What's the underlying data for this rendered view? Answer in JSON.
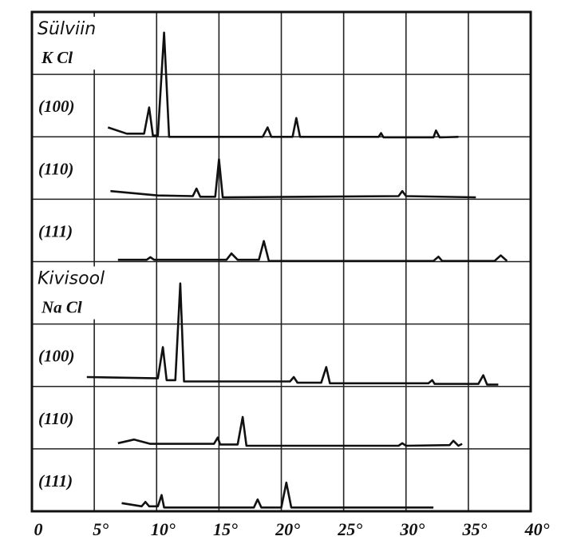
{
  "chart_data": {
    "type": "line",
    "xlim": [
      0,
      40
    ],
    "xticks": [
      0,
      {
        "value": 5,
        "label": "5°"
      },
      {
        "value": 10,
        "label": "10°"
      },
      {
        "value": 15,
        "label": "15°"
      },
      {
        "value": 20,
        "label": "20°"
      },
      {
        "value": 25,
        "label": "25°"
      },
      {
        "value": 30,
        "label": "30°"
      },
      {
        "value": 35,
        "label": "35°"
      },
      {
        "value": 40,
        "label": "40°"
      }
    ],
    "ylim": [
      0,
      8
    ],
    "yticks": [
      0,
      1,
      2,
      3,
      4,
      5,
      6,
      7,
      8
    ],
    "grid": true,
    "color": "#111111",
    "groups": [
      {
        "name": "Sülviin",
        "formula": "K Cl",
        "series": [
          {
            "name": "(100)",
            "x": [
              6.1,
              7.6,
              9.0,
              9.4,
              9.7,
              10.1,
              10.6,
              11.0,
              18.5,
              18.9,
              19.2,
              20.9,
              21.2,
              21.5,
              27.8,
              28.0,
              28.2,
              32.2,
              32.4,
              32.7,
              34.2
            ],
            "values": [
              6.15,
              6.05,
              6.05,
              6.47,
              6.02,
              6.02,
              7.67,
              6.0,
              6.0,
              6.15,
              6.0,
              6.0,
              6.3,
              6.0,
              6.0,
              6.06,
              5.99,
              5.99,
              6.1,
              5.99,
              6.0
            ]
          },
          {
            "name": "(110)",
            "x": [
              6.3,
              10.1,
              12.9,
              13.2,
              13.5,
              14.7,
              15.0,
              15.3,
              29.4,
              29.7,
              30.0,
              35.6
            ],
            "values": [
              5.13,
              5.06,
              5.05,
              5.17,
              5.04,
              5.04,
              5.64,
              5.03,
              5.05,
              5.13,
              5.05,
              5.03
            ]
          },
          {
            "name": "(111)",
            "x": [
              6.9,
              9.2,
              9.5,
              9.8,
              15.6,
              16.0,
              16.5,
              18.2,
              18.6,
              19.0,
              32.2,
              32.6,
              32.9,
              37.1,
              37.6,
              38.1
            ],
            "values": [
              4.03,
              4.03,
              4.07,
              4.03,
              4.03,
              4.13,
              4.03,
              4.03,
              4.33,
              4.01,
              4.01,
              4.08,
              4.01,
              4.01,
              4.1,
              4.01
            ]
          }
        ]
      },
      {
        "name": "Kivisool",
        "formula": "Na Cl",
        "series": [
          {
            "name": "(100)",
            "x": [
              4.4,
              10.1,
              10.5,
              10.8,
              11.5,
              11.9,
              12.2,
              20.7,
              21.0,
              21.3,
              23.2,
              23.6,
              23.9,
              31.8,
              32.1,
              32.3,
              35.8,
              36.2,
              36.5,
              37.4
            ],
            "values": [
              2.15,
              2.13,
              2.63,
              2.1,
              2.1,
              3.65,
              2.08,
              2.08,
              2.15,
              2.06,
              2.06,
              2.31,
              2.05,
              2.05,
              2.1,
              2.04,
              2.04,
              2.18,
              2.03,
              2.03
            ]
          },
          {
            "name": "(110)",
            "x": [
              6.9,
              8.2,
              9.5,
              14.6,
              14.9,
              15.1,
              16.5,
              16.9,
              17.2,
              29.4,
              29.7,
              30.0,
              33.5,
              33.8,
              34.2,
              34.5
            ],
            "values": [
              1.09,
              1.15,
              1.08,
              1.08,
              1.18,
              1.07,
              1.07,
              1.51,
              1.05,
              1.05,
              1.09,
              1.05,
              1.06,
              1.13,
              1.05,
              1.08
            ]
          },
          {
            "name": "(111)",
            "x": [
              7.2,
              8.8,
              9.1,
              9.4,
              10.1,
              10.4,
              10.6,
              17.8,
              18.1,
              18.4,
              20.0,
              20.4,
              20.8,
              32.2
            ],
            "values": [
              0.13,
              0.08,
              0.15,
              0.08,
              0.08,
              0.26,
              0.06,
              0.06,
              0.19,
              0.06,
              0.06,
              0.46,
              0.06,
              0.06
            ]
          }
        ]
      }
    ]
  }
}
